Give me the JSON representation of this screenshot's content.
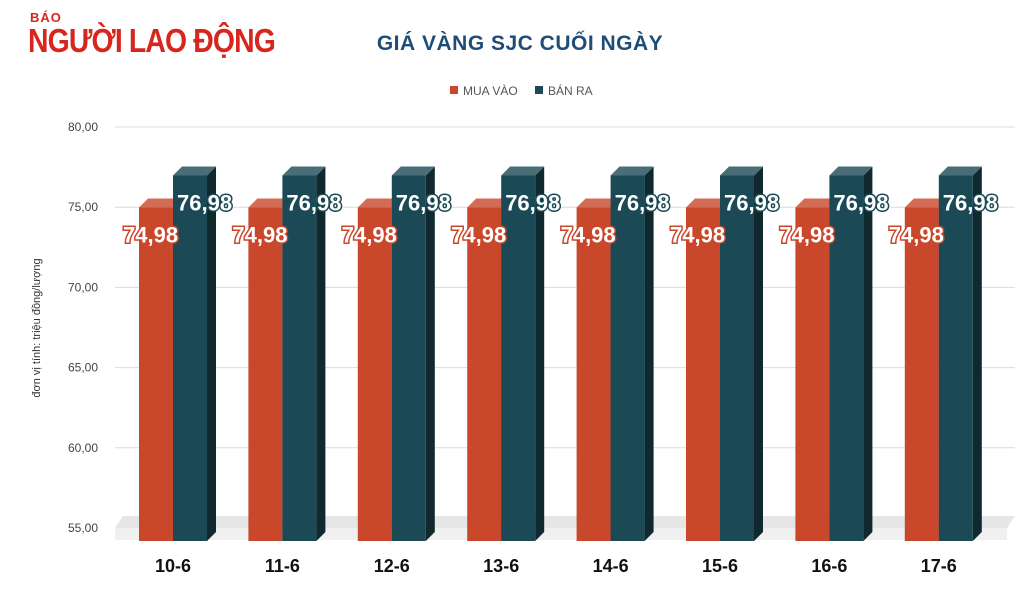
{
  "logo": {
    "small": "BÁO",
    "big": "NGƯỜI LAO ĐỘNG"
  },
  "chart_data": {
    "type": "bar",
    "title": "GIÁ VÀNG SJC CUỐI NGÀY",
    "ylabel": "đơn vị tính: triệu đồng/lượng",
    "xlabel": "",
    "categories": [
      "10-6",
      "11-6",
      "12-6",
      "13-6",
      "14-6",
      "15-6",
      "16-6",
      "17-6"
    ],
    "series": [
      {
        "name": "MUA VÀO",
        "color": "#c9472b",
        "values": [
          74.98,
          74.98,
          74.98,
          74.98,
          74.98,
          74.98,
          74.98,
          74.98
        ]
      },
      {
        "name": "BÁN RA",
        "color": "#1b4a56",
        "values": [
          76.98,
          76.98,
          76.98,
          76.98,
          76.98,
          76.98,
          76.98,
          76.98
        ]
      }
    ],
    "ylim": [
      55,
      80
    ],
    "yticks": [
      "55,00",
      "60,00",
      "65,00",
      "70,00",
      "75,00",
      "80,00"
    ],
    "data_labels": [
      "74,98",
      "76,98"
    ],
    "legend_position": "top-center",
    "grid": true
  }
}
